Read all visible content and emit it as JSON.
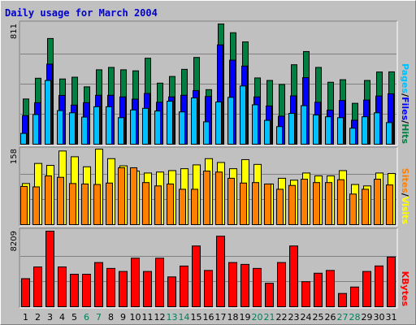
{
  "title": "Daily usage for March 2004",
  "colors": {
    "hits": "#008040",
    "files": "#0000ff",
    "pages": "#00c0ff",
    "visits": "#ffff00",
    "sites": "#ff8000",
    "kbytes": "#ff0000",
    "weekend_day": "#00805c",
    "weekday": "#000000",
    "sep": "#000000"
  },
  "chart_data": [
    {
      "type": "bar",
      "ylabel_max": "811",
      "legend": {
        "pages": "Pages",
        "files": "Files",
        "hits": "Hits",
        "sep": "/"
      },
      "categories": [
        "1",
        "2",
        "3",
        "4",
        "5",
        "6",
        "7",
        "8",
        "9",
        "10",
        "11",
        "12",
        "13",
        "14",
        "15",
        "16",
        "17",
        "18",
        "19",
        "20",
        "21",
        "22",
        "23",
        "24",
        "25",
        "26",
        "27",
        "28",
        "29",
        "30",
        "31"
      ],
      "ylim": [
        0,
        811
      ],
      "series": [
        {
          "name": "Hits",
          "values": [
            305,
            445,
            713,
            440,
            452,
            387,
            502,
            518,
            502,
            495,
            580,
            412,
            457,
            505,
            585,
            368,
            811,
            752,
            690,
            447,
            430,
            403,
            536,
            625,
            518,
            418,
            435,
            276,
            430,
            487,
            488
          ]
        },
        {
          "name": "Files",
          "values": [
            193,
            280,
            540,
            329,
            264,
            280,
            330,
            330,
            319,
            304,
            342,
            283,
            319,
            330,
            361,
            322,
            670,
            567,
            527,
            319,
            258,
            189,
            326,
            449,
            283,
            230,
            295,
            162,
            298,
            325,
            340
          ]
        },
        {
          "name": "Pages",
          "values": [
            73,
            200,
            430,
            227,
            212,
            183,
            253,
            253,
            179,
            231,
            242,
            224,
            290,
            218,
            312,
            151,
            285,
            316,
            393,
            266,
            161,
            119,
            208,
            260,
            197,
            185,
            179,
            108,
            185,
            212,
            146
          ]
        }
      ]
    },
    {
      "type": "bar",
      "ylabel_max": "158",
      "legend": {
        "sites": "Sites",
        "visits": "Visits",
        "sep": "/"
      },
      "categories": [
        "1",
        "2",
        "3",
        "4",
        "5",
        "6",
        "7",
        "8",
        "9",
        "10",
        "11",
        "12",
        "13",
        "14",
        "15",
        "16",
        "17",
        "18",
        "19",
        "20",
        "21",
        "22",
        "23",
        "24",
        "25",
        "26",
        "27",
        "28",
        "29",
        "30",
        "31"
      ],
      "ylim": [
        0,
        158
      ],
      "series": [
        {
          "name": "Visits",
          "values": [
            86,
            128,
            124,
            154,
            142,
            121,
            158,
            138,
            123,
            112,
            108,
            110,
            113,
            117,
            125,
            138,
            130,
            117,
            136,
            126,
            85,
            97,
            93,
            108,
            102,
            102,
            113,
            84,
            81,
            108,
            107
          ]
        },
        {
          "name": "Sites",
          "values": [
            80,
            79,
            102,
            99,
            86,
            85,
            84,
            87,
            119,
            119,
            88,
            81,
            85,
            74,
            74,
            112,
            110,
            97,
            87,
            88,
            85,
            74,
            82,
            95,
            88,
            88,
            94,
            64,
            74,
            95,
            83
          ]
        }
      ]
    },
    {
      "type": "bar",
      "ylabel_max": "8209",
      "legend": {
        "kbytes": "KBytes"
      },
      "categories": [
        "1",
        "2",
        "3",
        "4",
        "5",
        "6",
        "7",
        "8",
        "9",
        "10",
        "11",
        "12",
        "13",
        "14",
        "15",
        "16",
        "17",
        "18",
        "19",
        "20",
        "21",
        "22",
        "23",
        "24",
        "25",
        "26",
        "27",
        "28",
        "29",
        "30",
        "31"
      ],
      "ylim": [
        0,
        8209
      ],
      "series": [
        {
          "name": "KBytes",
          "values": [
            3050,
            4320,
            8209,
            4320,
            3530,
            3530,
            4800,
            4160,
            3830,
            5270,
            3830,
            5270,
            3240,
            4420,
            6600,
            3940,
            7660,
            4800,
            4600,
            4160,
            2550,
            4800,
            6600,
            2720,
            3640,
            3940,
            1440,
            2140,
            3830,
            4430,
            5400
          ]
        }
      ]
    }
  ]
}
